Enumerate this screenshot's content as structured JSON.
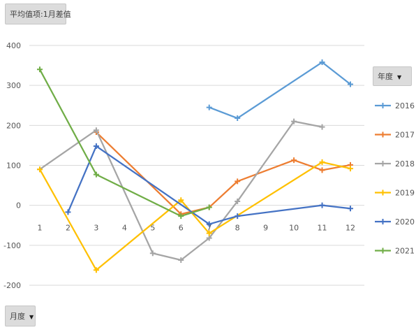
{
  "field_buttons": {
    "value_label": "平均值项:1月差值",
    "legend_label": "年度",
    "axis_label": "月度"
  },
  "icons": {
    "dropdown": "chevron-down-icon"
  },
  "chart_data": {
    "type": "line",
    "title": "",
    "xlabel": "",
    "ylabel": "",
    "categories": [
      "1",
      "2",
      "3",
      "4",
      "5",
      "6",
      "7",
      "8",
      "9",
      "10",
      "11",
      "12"
    ],
    "ylim": [
      -200,
      400
    ],
    "yticks": [
      400,
      300,
      200,
      100,
      0,
      -100,
      -200
    ],
    "grid": true,
    "legend_position": "right",
    "series": [
      {
        "name": "2016",
        "color": "#5b9bd5",
        "values": [
          null,
          null,
          null,
          null,
          null,
          null,
          245,
          218,
          null,
          null,
          358,
          303
        ]
      },
      {
        "name": "2017",
        "color": "#ed7d31",
        "values": [
          null,
          null,
          183,
          null,
          null,
          -22,
          -5,
          60,
          null,
          113,
          88,
          101
        ]
      },
      {
        "name": "2018",
        "color": "#a5a5a5",
        "values": [
          90,
          null,
          188,
          null,
          -120,
          -137,
          -82,
          10,
          null,
          210,
          196,
          null
        ]
      },
      {
        "name": "2019",
        "color": "#ffc000",
        "values": [
          90,
          null,
          -162,
          null,
          null,
          13,
          -70,
          null,
          null,
          null,
          108,
          92
        ]
      },
      {
        "name": "2020",
        "color": "#4472c4",
        "values": [
          null,
          -17,
          148,
          null,
          null,
          null,
          -47,
          -27,
          null,
          null,
          0,
          -8
        ]
      },
      {
        "name": "2021",
        "color": "#70ad47",
        "values": [
          340,
          null,
          77,
          null,
          null,
          -27,
          -5,
          null,
          null,
          null,
          null,
          null
        ]
      }
    ]
  }
}
